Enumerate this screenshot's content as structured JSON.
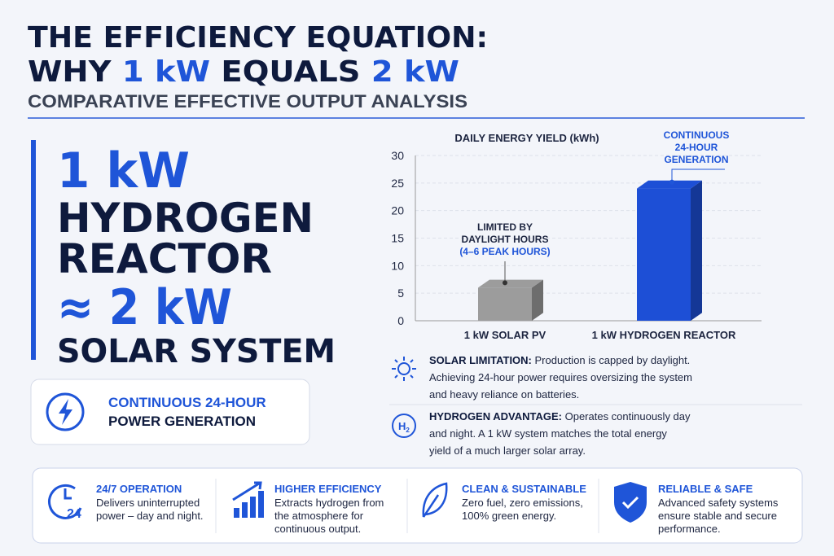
{
  "header": {
    "title_line1": "THE EFFICIENCY EQUATION:",
    "title_line2": [
      "WHY ",
      "1 kW",
      " EQUALS ",
      "2 kW"
    ],
    "subtitle": "COMPARATIVE EFFECTIVE OUTPUT ANALYSIS"
  },
  "hero": {
    "line1": "1 kW",
    "line2": "HYDROGEN",
    "line3": "REACTOR",
    "line4": "≈ 2 kW",
    "line5": "SOLAR SYSTEM"
  },
  "badge": {
    "line1": "CONTINUOUS 24-HOUR",
    "line2": "POWER GENERATION"
  },
  "chart_data": {
    "type": "bar",
    "title": "DAILY ENERGY YIELD (kWh)",
    "categories": [
      "1 kW SOLAR PV",
      "1 kW HYDROGEN REACTOR"
    ],
    "values": [
      6,
      24
    ],
    "colors": [
      "#9c9c9c",
      "#1d4fd6"
    ],
    "ylim": [
      0,
      30
    ],
    "yticks": [
      0,
      5,
      10,
      15,
      20,
      25,
      30
    ],
    "grid": true,
    "annotations": [
      {
        "lines": [
          "LIMITED BY",
          "DAYLIGHT HOURS",
          "(4–6 PEAK HOURS)"
        ]
      },
      {
        "lines": [
          "CONTINUOUS",
          "24-HOUR",
          "GENERATION"
        ]
      }
    ]
  },
  "notes": [
    {
      "label": "SOLAR LIMITATION:",
      "lines": [
        " Production is capped by daylight.",
        "Achieving 24-hour power requires oversizing the system",
        "and heavy reliance on batteries."
      ]
    },
    {
      "label": "HYDROGEN ADVANTAGE:",
      "lines": [
        " Operates continuously day",
        "and night. A 1 kW system matches the total energy",
        "yield of a much larger solar array."
      ]
    }
  ],
  "features": [
    {
      "title": "24/7 OPERATION",
      "lines": [
        "Delivers uninterrupted",
        "power – day and night."
      ],
      "icon_text": "24"
    },
    {
      "title": "HIGHER EFFICIENCY",
      "lines": [
        "Extracts hydrogen from",
        "the atmosphere for",
        "continuous output."
      ]
    },
    {
      "title": "CLEAN & SUSTAINABLE",
      "lines": [
        "Zero fuel, zero emissions,",
        "100% green energy."
      ]
    },
    {
      "title": "RELIABLE & SAFE",
      "lines": [
        "Advanced safety systems",
        "ensure stable and secure",
        "performance."
      ]
    }
  ]
}
